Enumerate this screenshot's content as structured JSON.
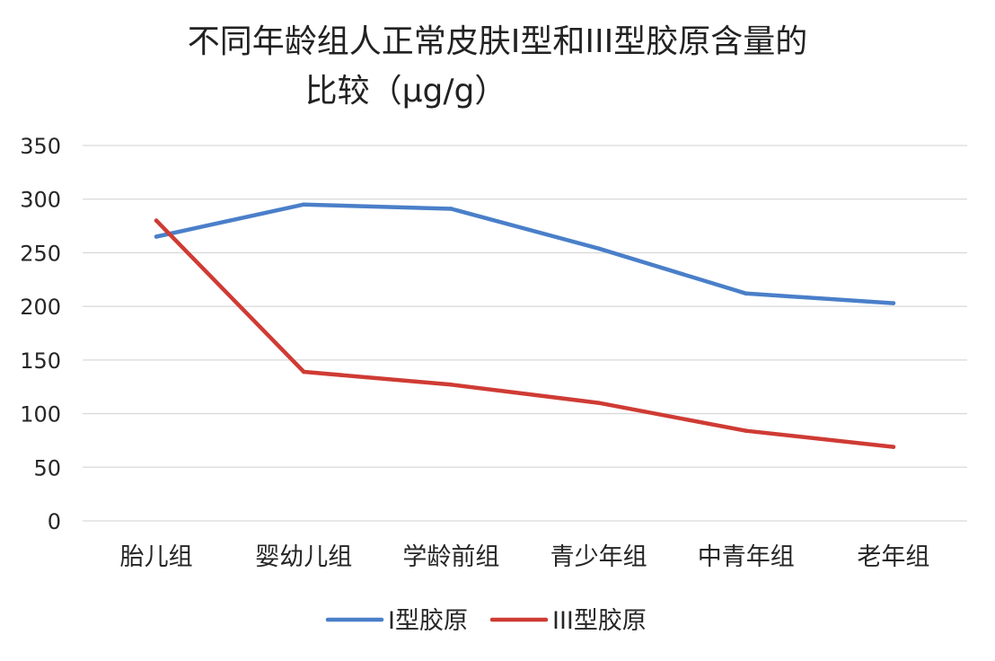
{
  "chart_data": {
    "type": "line",
    "title": [
      "不同年龄组人正常皮肤I型和III型胶原含量的",
      "比较（μg/g）"
    ],
    "categories": [
      "胎儿组",
      "婴幼儿组",
      "学龄前组",
      "青少年组",
      "中青年组",
      "老年组"
    ],
    "series": [
      {
        "name": "I型胶原",
        "color": "#4a7fc9",
        "values": [
          265,
          295,
          291,
          254,
          212,
          203
        ]
      },
      {
        "name": "III型胶原",
        "color": "#cf3b34",
        "values": [
          280,
          139,
          127,
          110,
          84,
          69
        ]
      }
    ],
    "ylim": [
      0,
      350
    ],
    "yticks": [
      0,
      50,
      100,
      150,
      200,
      250,
      300,
      350
    ],
    "xlabel": "",
    "ylabel": "",
    "grid": true,
    "legend": "bottom"
  }
}
